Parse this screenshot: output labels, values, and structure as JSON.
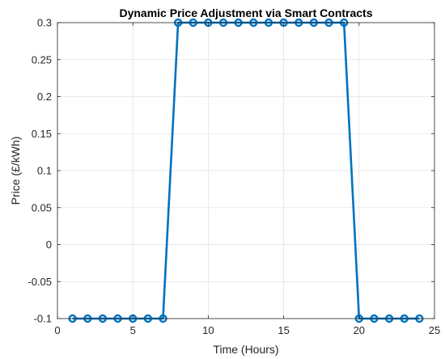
{
  "chart_data": {
    "type": "line",
    "title": "Dynamic Price Adjustment via Smart Contracts",
    "xlabel": "Time (Hours)",
    "ylabel": "Price (£/kWh)",
    "xlim": [
      0,
      25
    ],
    "ylim": [
      -0.1,
      0.3
    ],
    "xticks": [
      0,
      5,
      10,
      15,
      20,
      25
    ],
    "xtick_labels": [
      "0",
      "5",
      "10",
      "15",
      "20",
      "25"
    ],
    "yticks": [
      -0.1,
      -0.05,
      0,
      0.05,
      0.1,
      0.15,
      0.2,
      0.25,
      0.3
    ],
    "ytick_labels": [
      "-0.1",
      "-0.05",
      "0",
      "0.05",
      "0.1",
      "0.15",
      "0.2",
      "0.25",
      "0.3"
    ],
    "grid": true,
    "color": "#0072BD",
    "marker": "circle",
    "x": [
      1,
      2,
      3,
      4,
      5,
      6,
      7,
      8,
      9,
      10,
      11,
      12,
      13,
      14,
      15,
      16,
      17,
      18,
      19,
      20,
      21,
      22,
      23,
      24
    ],
    "y": [
      -0.1,
      -0.1,
      -0.1,
      -0.1,
      -0.1,
      -0.1,
      -0.1,
      0.3,
      0.3,
      0.3,
      0.3,
      0.3,
      0.3,
      0.3,
      0.3,
      0.3,
      0.3,
      0.3,
      0.3,
      -0.1,
      -0.1,
      -0.1,
      -0.1,
      -0.1
    ]
  }
}
